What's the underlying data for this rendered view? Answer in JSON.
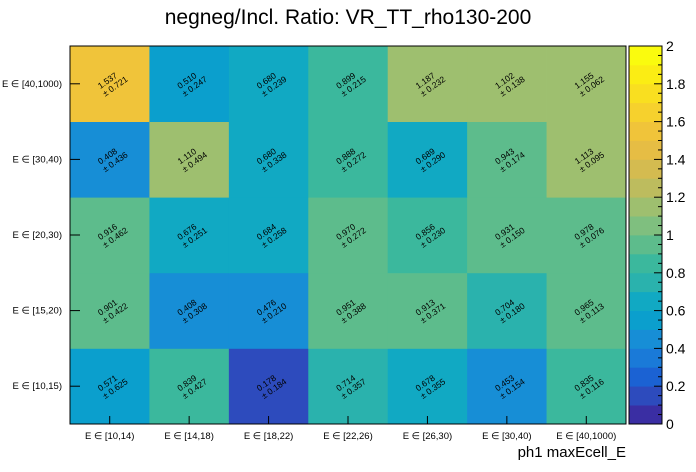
{
  "chart_data": {
    "type": "heatmap",
    "title": "negneg/Incl. Ratio: VR_TT_rho130-200",
    "xlabel": "ph1 maxEcell_E",
    "ylabel": "",
    "x_categories": [
      "E ∈ [10,14)",
      "E ∈ [14,18)",
      "E ∈ [18,22)",
      "E ∈ [22,26)",
      "E ∈ [26,30)",
      "E ∈ [30,40)",
      "E ∈ [40,1000)"
    ],
    "y_categories": [
      "E ∈ [10,15)",
      "E ∈ [15,20)",
      "E ∈ [20,30)",
      "E ∈ [30,40)",
      "E ∈ [40,1000)"
    ],
    "values": [
      [
        0.571,
        0.839,
        0.178,
        0.714,
        0.678,
        0.453,
        0.835
      ],
      [
        0.901,
        0.408,
        0.476,
        0.951,
        0.913,
        0.704,
        0.965
      ],
      [
        0.916,
        0.676,
        0.684,
        0.97,
        0.856,
        0.931,
        0.978
      ],
      [
        0.408,
        1.11,
        0.68,
        0.888,
        0.689,
        0.943,
        1.113
      ],
      [
        1.537,
        0.51,
        0.68,
        0.899,
        1.187,
        1.102,
        1.155
      ]
    ],
    "errors": [
      [
        0.625,
        0.427,
        0.184,
        0.357,
        0.355,
        0.154,
        0.116
      ],
      [
        0.422,
        0.308,
        0.21,
        0.388,
        0.371,
        0.18,
        0.113
      ],
      [
        0.462,
        0.251,
        0.258,
        0.272,
        0.23,
        0.15,
        0.076
      ],
      [
        0.436,
        0.494,
        0.338,
        0.272,
        0.29,
        0.174,
        0.095
      ],
      [
        0.721,
        0.247,
        0.239,
        0.215,
        0.232,
        0.138,
        0.062
      ]
    ],
    "zlim": [
      0,
      2
    ],
    "z_ticks": [
      "0",
      "0.2",
      "0.4",
      "0.6",
      "0.8",
      "1",
      "1.2",
      "1.4",
      "1.6",
      "1.8",
      "2"
    ],
    "error_prefix": "±",
    "palette": [
      "#3a2ea3",
      "#2d4bbd",
      "#1b62d3",
      "#1a7ad8",
      "#178ed6",
      "#0b9fcd",
      "#11a9c3",
      "#2ab2ad",
      "#3bb89d",
      "#5dbc8c",
      "#7fbf7f",
      "#9ebf6f",
      "#bdbc5e",
      "#d4bb50",
      "#e6bd44",
      "#f0c43a",
      "#f6d12d",
      "#f9df20",
      "#fbed14",
      "#fafb0e"
    ]
  }
}
